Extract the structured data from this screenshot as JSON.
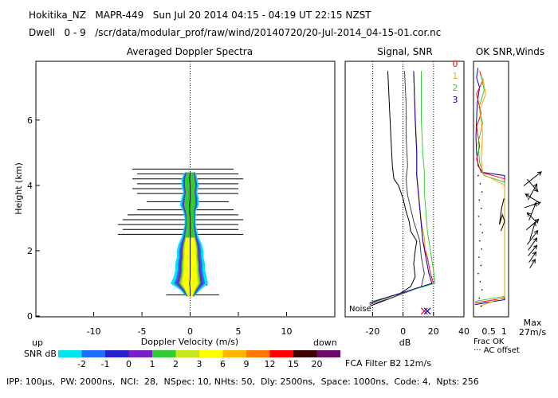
{
  "header": {
    "line1": "Hokitika_NZ   MAPR-449   Sun Jul 20 2014 04:15 - 04:19 UT 22:15 NZST",
    "line2": "Dwell   0 - 9   /scr/data/modular_prof/raw/wind/20140720/20-Jul-2014_04-15-01.cor.nc"
  },
  "footer": {
    "params": "IPP: 100µs,  PW: 2000ns,  NCI:  28,  NSpec: 10, NHts: 50,  Dly: 2500ns,  Space: 1000ns,  Code: 4,  Npts: 256",
    "fca": "FCA Filter B2 12m/s"
  },
  "colorbar": {
    "title": "SNR dB",
    "labels": [
      "-2",
      "-1",
      "0",
      "1",
      "2",
      "3",
      "6",
      "9",
      "12",
      "15",
      "20"
    ],
    "colors": [
      "#00e5ee",
      "#1e6fff",
      "#2323c8",
      "#7a1ec8",
      "#32cd32",
      "#c8e61e",
      "#ffff00",
      "#ffb400",
      "#ff7800",
      "#ff0000",
      "#3c0000",
      "#6a0a6a"
    ]
  },
  "chart_data": [
    {
      "type": "heatmap",
      "title": "Averaged Doppler Spectra",
      "xlabel": "Doppler Velocity (m/s)",
      "ylabel": "Height (km)",
      "xlim": [
        -16,
        15
      ],
      "ylim": [
        0,
        7.8
      ],
      "xticks": [
        -10,
        -5,
        0,
        5,
        10
      ],
      "yticks": [
        0,
        2,
        4,
        6
      ],
      "left_note": "up",
      "right_note": "down",
      "spectra": [
        {
          "h": 0.6,
          "lo": -0.2,
          "hi": 0.2
        },
        {
          "h": 0.8,
          "lo": -0.6,
          "hi": 0.6
        },
        {
          "h": 1.0,
          "lo": -1.2,
          "hi": 1.1
        },
        {
          "h": 1.2,
          "lo": -1.0,
          "hi": 1.0
        },
        {
          "h": 1.4,
          "lo": -0.9,
          "hi": 0.9
        },
        {
          "h": 1.6,
          "lo": -0.9,
          "hi": 0.9
        },
        {
          "h": 1.8,
          "lo": -0.8,
          "hi": 0.8
        },
        {
          "h": 2.0,
          "lo": -0.8,
          "hi": 0.8
        },
        {
          "h": 2.2,
          "lo": -0.7,
          "hi": 0.7
        },
        {
          "h": 2.4,
          "lo": -0.5,
          "hi": 0.5
        },
        {
          "h": 2.6,
          "lo": -0.4,
          "hi": 0.4
        },
        {
          "h": 2.8,
          "lo": -0.3,
          "hi": 0.3
        },
        {
          "h": 3.0,
          "lo": -0.3,
          "hi": 0.3
        },
        {
          "h": 3.2,
          "lo": -0.4,
          "hi": 0.3
        },
        {
          "h": 3.4,
          "lo": -0.6,
          "hi": 0.5
        },
        {
          "h": 3.6,
          "lo": -0.5,
          "hi": 0.5
        },
        {
          "h": 3.8,
          "lo": -0.4,
          "hi": 0.4
        },
        {
          "h": 4.0,
          "lo": -0.5,
          "hi": 0.5
        },
        {
          "h": 4.2,
          "lo": -0.5,
          "hi": 0.4
        },
        {
          "h": 4.4,
          "lo": -0.3,
          "hi": 0.3
        }
      ],
      "noise_bars": [
        {
          "h": 0.65,
          "lo": -2.5,
          "hi": 3.0
        },
        {
          "h": 0.95,
          "lo": -1.8,
          "hi": 1.8
        },
        {
          "h": 2.5,
          "lo": -7.5,
          "hi": 5.5
        },
        {
          "h": 2.65,
          "lo": -7.0,
          "hi": 5.0
        },
        {
          "h": 2.8,
          "lo": -7.5,
          "hi": 5.0
        },
        {
          "h": 2.95,
          "lo": -7.0,
          "hi": 5.5
        },
        {
          "h": 3.1,
          "lo": -6.5,
          "hi": 5.0
        },
        {
          "h": 3.25,
          "lo": -5.5,
          "hi": 4.5
        },
        {
          "h": 3.5,
          "lo": -4.5,
          "hi": 4.0
        },
        {
          "h": 3.75,
          "lo": -5.5,
          "hi": 5.0
        },
        {
          "h": 3.9,
          "lo": -6.0,
          "hi": 5.0
        },
        {
          "h": 4.05,
          "lo": -5.5,
          "hi": 5.0
        },
        {
          "h": 4.2,
          "lo": -6.0,
          "hi": 5.5
        },
        {
          "h": 4.35,
          "lo": -5.5,
          "hi": 5.0
        },
        {
          "h": 4.5,
          "lo": -6.0,
          "hi": 4.5
        }
      ]
    },
    {
      "type": "line",
      "title": "Signal, SNR",
      "xlabel": "dB",
      "xlim": [
        -38,
        40
      ],
      "ylim": [
        0,
        7.8
      ],
      "xticks": [
        -20,
        0,
        20,
        40
      ],
      "noise_label": "Noise",
      "dotted_x": [
        -20,
        0,
        20
      ],
      "series": [
        {
          "color": "#000000",
          "points": [
            [
              -22,
              0.3
            ],
            [
              -5,
              0.6
            ],
            [
              5,
              0.9
            ],
            [
              8,
              1.2
            ],
            [
              7,
              1.6
            ],
            [
              8,
              2.0
            ],
            [
              9,
              2.3
            ],
            [
              5,
              2.6
            ],
            [
              4,
              2.9
            ],
            [
              2,
              3.2
            ],
            [
              0,
              3.6
            ],
            [
              -3,
              4.0
            ],
            [
              -6,
              4.2
            ],
            [
              -7,
              4.6
            ],
            [
              -8,
              5.5
            ],
            [
              -9,
              6.5
            ],
            [
              -10,
              7.5
            ]
          ]
        },
        {
          "color": "#444444",
          "points": [
            [
              -22,
              0.35
            ],
            [
              -8,
              0.55
            ],
            [
              12,
              0.9
            ],
            [
              14,
              1.3
            ],
            [
              12,
              1.8
            ],
            [
              11,
              2.3
            ],
            [
              9,
              2.6
            ],
            [
              7,
              2.9
            ],
            [
              5,
              3.3
            ],
            [
              3,
              3.7
            ],
            [
              2,
              4.2
            ],
            [
              3,
              4.6
            ],
            [
              2,
              5.5
            ],
            [
              2,
              6.5
            ],
            [
              1,
              7.5
            ]
          ]
        },
        {
          "color": "#ff0000",
          "points": [
            [
              -22,
              0.4
            ],
            [
              20,
              1.0
            ],
            [
              18,
              1.3
            ],
            [
              16,
              1.8
            ],
            [
              13,
              2.3
            ],
            [
              12,
              2.8
            ],
            [
              11,
              3.3
            ],
            [
              10,
              3.8
            ],
            [
              9,
              4.3
            ],
            [
              9,
              5.0
            ],
            [
              8,
              6.0
            ],
            [
              7,
              7.5
            ]
          ]
        },
        {
          "color": "#ffa500",
          "points": [
            [
              -21,
              0.4
            ],
            [
              19,
              1.0
            ],
            [
              17,
              1.3
            ],
            [
              15,
              1.8
            ],
            [
              14,
              2.4
            ],
            [
              12,
              2.9
            ],
            [
              11,
              3.4
            ],
            [
              10,
              3.9
            ],
            [
              9,
              4.4
            ],
            [
              9,
              5.2
            ],
            [
              8,
              6.2
            ],
            [
              7,
              7.5
            ]
          ]
        },
        {
          "color": "#32cd32",
          "points": [
            [
              -20,
              0.45
            ],
            [
              21,
              1.0
            ],
            [
              20,
              1.4
            ],
            [
              18,
              2.0
            ],
            [
              16,
              2.6
            ],
            [
              15,
              3.2
            ],
            [
              14,
              3.8
            ],
            [
              14,
              4.4
            ],
            [
              13,
              5.0
            ],
            [
              12,
              6.0
            ],
            [
              12,
              7.5
            ]
          ]
        },
        {
          "color": "#0000c8",
          "points": [
            [
              -22,
              0.4
            ],
            [
              19,
              1.0
            ],
            [
              17,
              1.3
            ],
            [
              15,
              1.8
            ],
            [
              13,
              2.3
            ],
            [
              12,
              2.8
            ],
            [
              11,
              3.3
            ],
            [
              10,
              3.8
            ],
            [
              9,
              4.3
            ],
            [
              9,
              5.0
            ],
            [
              8,
              6.0
            ],
            [
              7,
              7.5
            ]
          ]
        }
      ],
      "markers": [
        {
          "x": 14,
          "h": 0.15,
          "color": "#ff0000"
        },
        {
          "x": 16,
          "h": 0.15,
          "color": "#0000c8"
        }
      ]
    },
    {
      "type": "line",
      "title": "OK SNR,Winds",
      "legend": [
        "0",
        "1",
        "2",
        "3"
      ],
      "legend_colors": [
        "#ff0000",
        "#ffa500",
        "#32cd32",
        "#0000c8"
      ],
      "xlim": [
        0,
        1.15
      ],
      "ylim": [
        0,
        7.8
      ],
      "xtick_labels": [
        "0.5",
        "1"
      ],
      "frac_ok_label": "Frac OK",
      "ac_offset_label": "··· AC offset",
      "max_label": "Max",
      "max_value": "27m/s",
      "series": [
        {
          "color": "#0000c8",
          "points": [
            [
              0.05,
              0.35
            ],
            [
              1.02,
              0.5
            ],
            [
              1.02,
              4.3
            ],
            [
              0.3,
              4.4
            ],
            [
              0.15,
              4.6
            ],
            [
              0.1,
              5.0
            ],
            [
              0.08,
              5.5
            ],
            [
              0.1,
              6.0
            ],
            [
              0.12,
              6.5
            ],
            [
              0.2,
              7.0
            ],
            [
              0.1,
              7.3
            ],
            [
              0.15,
              7.6
            ]
          ]
        },
        {
          "color": "#ff0000",
          "points": [
            [
              0.05,
              0.4
            ],
            [
              1.02,
              0.55
            ],
            [
              1.02,
              4.2
            ],
            [
              0.25,
              4.4
            ],
            [
              0.1,
              4.8
            ],
            [
              0.2,
              5.2
            ],
            [
              0.1,
              5.8
            ],
            [
              0.25,
              6.2
            ],
            [
              0.1,
              6.8
            ],
            [
              0.3,
              7.2
            ],
            [
              0.2,
              7.5
            ]
          ]
        },
        {
          "color": "#32cd32",
          "points": [
            [
              0.06,
              0.45
            ],
            [
              1.02,
              0.6
            ],
            [
              1.02,
              4.1
            ],
            [
              0.35,
              4.3
            ],
            [
              0.2,
              4.7
            ],
            [
              0.15,
              5.3
            ],
            [
              0.3,
              5.9
            ],
            [
              0.18,
              6.4
            ],
            [
              0.35,
              6.9
            ],
            [
              0.25,
              7.4
            ]
          ]
        },
        {
          "color": "#ffa500",
          "points": [
            [
              0.2,
              0.3
            ],
            [
              1.02,
              0.58
            ],
            [
              1.02,
              4.0
            ],
            [
              0.3,
              4.35
            ],
            [
              0.25,
              4.8
            ],
            [
              0.3,
              5.6
            ],
            [
              0.2,
              6.3
            ],
            [
              0.4,
              6.8
            ],
            [
              0.3,
              7.3
            ]
          ]
        },
        {
          "color": "#000000",
          "points": [
            [
              0.9,
              2.6
            ],
            [
              1.02,
              2.9
            ],
            [
              0.95,
              3.1
            ],
            [
              0.85,
              2.8
            ],
            [
              0.92,
              3.3
            ],
            [
              1.0,
              3.6
            ]
          ]
        }
      ],
      "winds": [
        {
          "h": 4.2,
          "u": 1.0,
          "v": 0.8
        },
        {
          "h": 4.0,
          "u": 0.6,
          "v": -0.7
        },
        {
          "h": 3.8,
          "u": 0.5,
          "v": 0.9
        },
        {
          "h": 3.6,
          "u": -0.8,
          "v": 0.5
        },
        {
          "h": 3.4,
          "u": 0.9,
          "v": 0.3
        },
        {
          "h": 3.2,
          "u": 0.4,
          "v": 1.0
        },
        {
          "h": 3.0,
          "u": -0.6,
          "v": 0.6
        },
        {
          "h": 2.8,
          "u": 0.7,
          "v": 0.6
        },
        {
          "h": 2.6,
          "u": 0.3,
          "v": 1.0
        },
        {
          "h": 2.4,
          "u": 0.6,
          "v": 0.8
        },
        {
          "h": 2.2,
          "u": 0.5,
          "v": 0.7
        },
        {
          "h": 2.0,
          "u": 0.5,
          "v": 0.6
        },
        {
          "h": 1.8,
          "u": 0.4,
          "v": 0.6
        },
        {
          "h": 1.6,
          "u": 0.3,
          "v": 0.5
        }
      ]
    }
  ]
}
